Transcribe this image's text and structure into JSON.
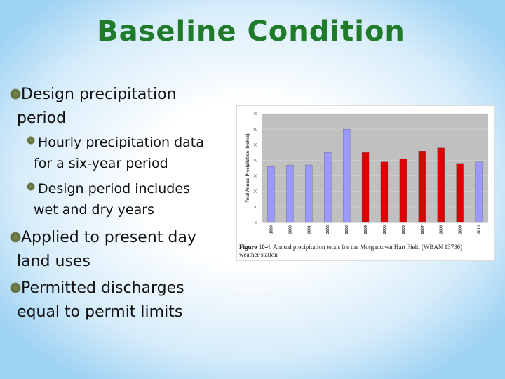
{
  "title": "Baseline Condition",
  "bullets": [
    {
      "lines": [
        "Design precipitation",
        "period"
      ],
      "sub": [
        {
          "lines": [
            "Hourly precipitation data",
            "for a six-year period"
          ]
        },
        {
          "lines": [
            "Design period includes",
            "wet and dry years"
          ]
        }
      ]
    },
    {
      "lines": [
        "Applied to present day",
        "land uses"
      ]
    },
    {
      "lines": [
        "Permitted discharges",
        "equal to permit limits"
      ]
    }
  ],
  "figure": {
    "label": "Figure 10-4.",
    "caption_lines": [
      "Annual precipitation totals for the Morgantown Hart Field (WBAN 13736)",
      "weather station"
    ]
  },
  "chart_data": {
    "type": "bar",
    "y_label": "Total Annual Precipitation (inches)",
    "categories": [
      "1999",
      "2000",
      "2001",
      "2002",
      "2003",
      "2004",
      "2005",
      "2006",
      "2007",
      "2008",
      "2009",
      "2010"
    ],
    "values": [
      36,
      37,
      37,
      45,
      60,
      45,
      39,
      41,
      46,
      48,
      38,
      39
    ],
    "colors": [
      "#9999ff",
      "#9999ff",
      "#9999ff",
      "#9999ff",
      "#9999ff",
      "#dd0000",
      "#dd0000",
      "#dd0000",
      "#dd0000",
      "#dd0000",
      "#dd0000",
      "#9999ff"
    ],
    "ylim": [
      0,
      70
    ],
    "yticks": [
      0,
      10,
      20,
      30,
      40,
      50,
      60,
      70
    ],
    "grid": true
  }
}
